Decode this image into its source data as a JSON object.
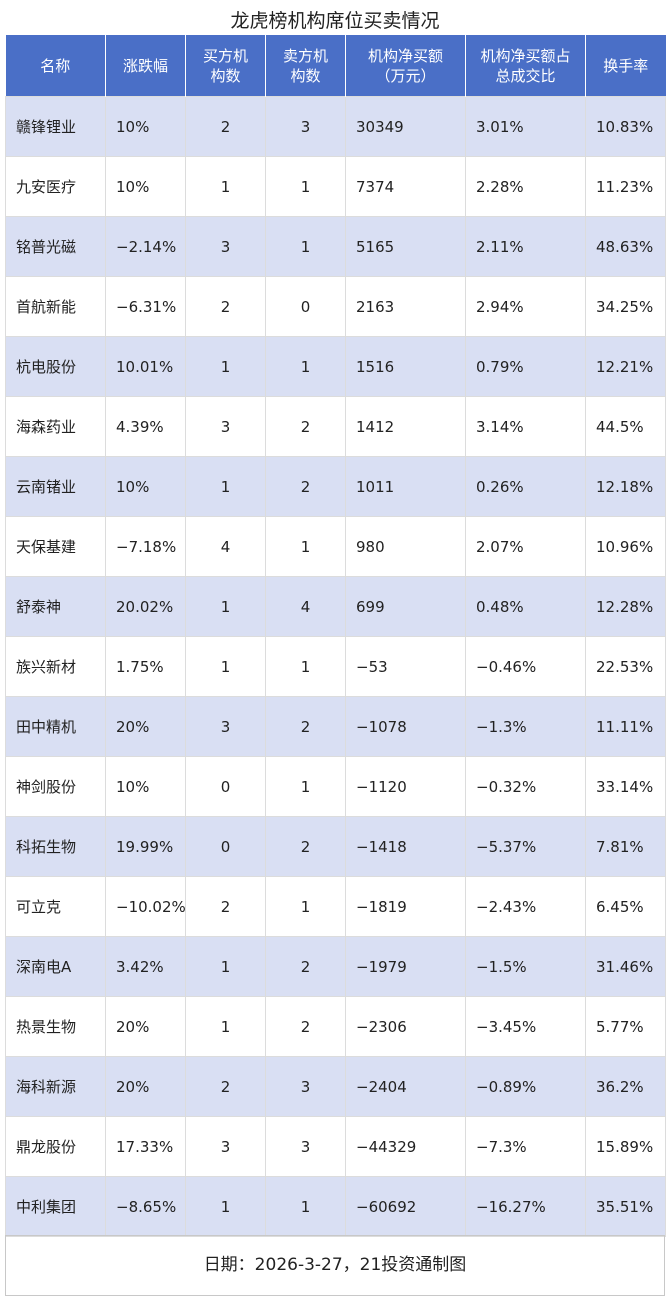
{
  "title": "龙虎榜机构席位买卖情况",
  "table": {
    "headers": [
      "名称",
      "涨跌幅",
      "买方机\n构数",
      "卖方机\n构数",
      "机构净买额\n（万元）",
      "机构净买额占\n总成交比",
      "换手率"
    ],
    "rows": [
      [
        "赣锋锂业",
        "10%",
        "2",
        "3",
        "30349",
        "3.01%",
        "10.83%"
      ],
      [
        "九安医疗",
        "10%",
        "1",
        "1",
        "7374",
        "2.28%",
        "11.23%"
      ],
      [
        "铭普光磁",
        "−2.14%",
        "3",
        "1",
        "5165",
        "2.11%",
        "48.63%"
      ],
      [
        "首航新能",
        "−6.31%",
        "2",
        "0",
        "2163",
        "2.94%",
        "34.25%"
      ],
      [
        "杭电股份",
        "10.01%",
        "1",
        "1",
        "1516",
        "0.79%",
        "12.21%"
      ],
      [
        "海森药业",
        "4.39%",
        "3",
        "2",
        "1412",
        "3.14%",
        "44.5%"
      ],
      [
        "云南锗业",
        "10%",
        "1",
        "2",
        "1011",
        "0.26%",
        "12.18%"
      ],
      [
        "天保基建",
        "−7.18%",
        "4",
        "1",
        "980",
        "2.07%",
        "10.96%"
      ],
      [
        "舒泰神",
        "20.02%",
        "1",
        "4",
        "699",
        "0.48%",
        "12.28%"
      ],
      [
        "族兴新材",
        "1.75%",
        "1",
        "1",
        "−53",
        "−0.46%",
        "22.53%"
      ],
      [
        "田中精机",
        "20%",
        "3",
        "2",
        "−1078",
        "−1.3%",
        "11.11%"
      ],
      [
        "神剑股份",
        "10%",
        "0",
        "1",
        "−1120",
        "−0.32%",
        "33.14%"
      ],
      [
        "科拓生物",
        "19.99%",
        "0",
        "2",
        "−1418",
        "−5.37%",
        "7.81%"
      ],
      [
        "可立克",
        "−10.02%",
        "2",
        "1",
        "−1819",
        "−2.43%",
        "6.45%"
      ],
      [
        "深南电A",
        "3.42%",
        "1",
        "2",
        "−1979",
        "−1.5%",
        "31.46%"
      ],
      [
        "热景生物",
        "20%",
        "1",
        "2",
        "−2306",
        "−3.45%",
        "5.77%"
      ],
      [
        "海科新源",
        "20%",
        "2",
        "3",
        "−2404",
        "−0.89%",
        "36.2%"
      ],
      [
        "鼎龙股份",
        "17.33%",
        "3",
        "3",
        "−44329",
        "−7.3%",
        "15.89%"
      ],
      [
        "中利集团",
        "−8.65%",
        "1",
        "1",
        "−60692",
        "−16.27%",
        "35.51%"
      ]
    ]
  },
  "footer": "日期：2026-3-27，21投资通制图"
}
